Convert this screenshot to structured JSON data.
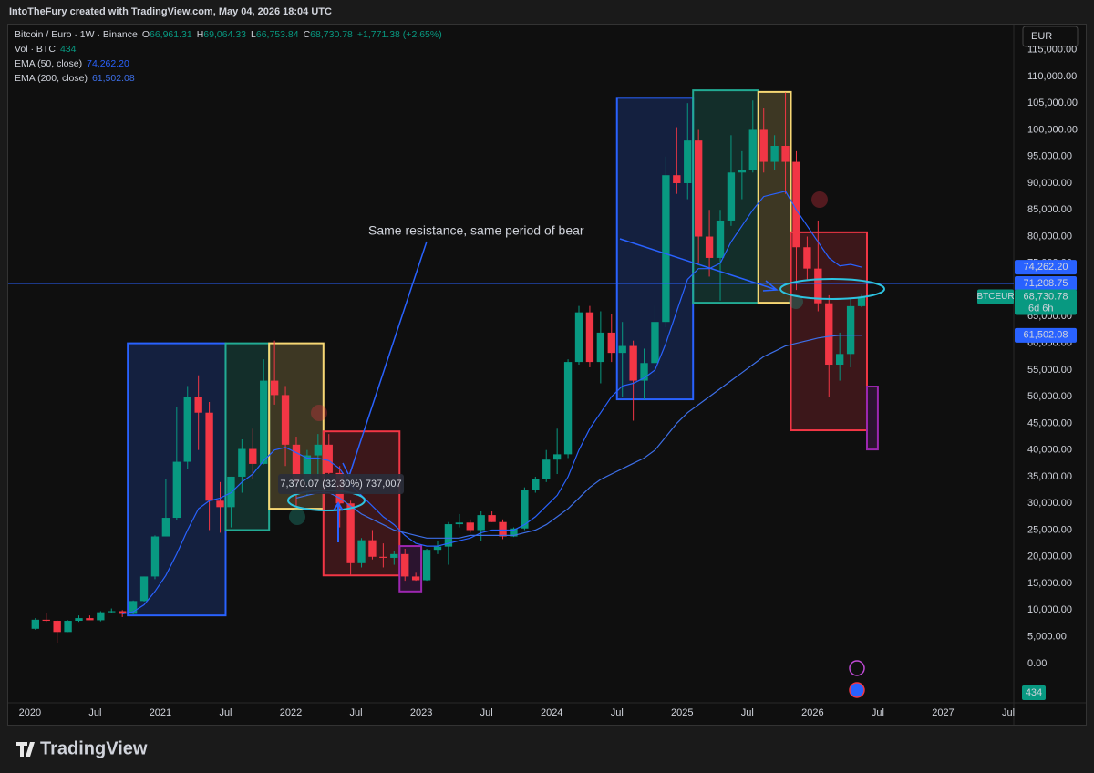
{
  "header": {
    "byline": "IntoTheFury created with TradingView.com, May 04, 2026 18:04 UTC",
    "symbol": "Bitcoin / Euro · 1W · Binance",
    "ohlc": [
      {
        "key": "O",
        "value": "66,961.31"
      },
      {
        "key": "H",
        "value": "69,064.33"
      },
      {
        "key": "L",
        "value": "66,753.84"
      },
      {
        "key": "C",
        "value": "68,730.78"
      }
    ],
    "change": "+1,771.38 (+2.65%)",
    "volume": {
      "name": "Vol · BTC",
      "value": "434"
    },
    "currency": "EUR"
  },
  "chart_data": {
    "type": "candlestick",
    "up_color": "#089981",
    "down_color": "#f23645",
    "x": [
      "2020-01",
      "2020-02",
      "2020-03",
      "2020-04",
      "2020-05",
      "2020-06",
      "2020-07",
      "2020-08",
      "2020-09",
      "2020-10",
      "2020-11",
      "2020-12",
      "2021-01",
      "2021-02",
      "2021-03",
      "2021-04",
      "2021-05",
      "2021-06",
      "2021-07",
      "2021-08",
      "2021-09",
      "2021-10",
      "2021-11",
      "2021-12",
      "2022-01",
      "2022-02",
      "2022-03",
      "2022-04",
      "2022-05",
      "2022-06",
      "2022-07",
      "2022-08",
      "2022-09",
      "2022-10",
      "2022-11",
      "2022-12",
      "2023-01",
      "2023-02",
      "2023-03",
      "2023-04",
      "2023-05",
      "2023-06",
      "2023-07",
      "2023-08",
      "2023-09",
      "2023-10",
      "2023-11",
      "2023-12",
      "2024-01",
      "2024-02",
      "2024-03",
      "2024-04",
      "2024-05",
      "2024-06",
      "2024-07",
      "2024-08",
      "2024-09",
      "2024-10",
      "2024-11",
      "2024-12",
      "2025-01",
      "2025-02",
      "2025-03",
      "2025-04",
      "2025-05",
      "2025-06",
      "2025-07",
      "2025-08",
      "2025-09",
      "2025-10",
      "2025-11",
      "2025-12",
      "2026-01",
      "2026-02",
      "2026-03",
      "2026-04",
      "2026-05"
    ],
    "open": [
      6500,
      8200,
      8000,
      5900,
      8000,
      8500,
      8100,
      9600,
      9800,
      9300,
      11700,
      16300,
      23800,
      27300,
      37800,
      50000,
      47000,
      30500,
      29300,
      35000,
      40200,
      37400,
      53000,
      50300,
      41000,
      34000,
      39000,
      41000,
      35700,
      30000,
      18800,
      23100,
      20000,
      19800,
      20500,
      16300,
      15600,
      21300,
      21900,
      26100,
      26400,
      25000,
      27800,
      26500,
      23800,
      25300,
      32500,
      34500,
      38200,
      39200,
      56500,
      65800,
      56500,
      62000,
      58200,
      59500,
      53000,
      56300,
      64000,
      91500,
      90000,
      98000,
      80000,
      76000,
      83000,
      92000,
      92500,
      100000,
      94000,
      97000,
      94000,
      78000,
      74000,
      67500,
      56000,
      58000,
      66961.31
    ],
    "high": [
      8500,
      9500,
      8100,
      8100,
      9000,
      9000,
      9800,
      10300,
      10000,
      11800,
      16300,
      24000,
      34500,
      48000,
      52000,
      54000,
      49000,
      34000,
      35000,
      42000,
      44000,
      57000,
      60500,
      52000,
      42500,
      40000,
      43000,
      43000,
      37000,
      30500,
      23500,
      25000,
      22500,
      21000,
      21500,
      17000,
      21500,
      23000,
      26500,
      28000,
      27000,
      28500,
      28500,
      27000,
      25500,
      33000,
      35000,
      40000,
      44000,
      57000,
      67000,
      67000,
      66000,
      65500,
      64000,
      60500,
      59000,
      67000,
      95000,
      100500,
      105000,
      100000,
      85000,
      85000,
      99000,
      96000,
      105500,
      104000,
      99000,
      107000,
      96000,
      80000,
      83000,
      69000,
      62000,
      68500,
      69064.33
    ],
    "low": [
      6300,
      7800,
      3900,
      5900,
      7800,
      8200,
      7900,
      9400,
      8700,
      9200,
      11600,
      15800,
      23800,
      26800,
      36500,
      40000,
      25000,
      24500,
      25500,
      32000,
      34500,
      37300,
      48500,
      37000,
      29500,
      31500,
      34500,
      35500,
      25500,
      16500,
      18000,
      19500,
      18000,
      18500,
      15500,
      15500,
      15500,
      20500,
      18500,
      25500,
      24500,
      23000,
      26500,
      23300,
      23700,
      25000,
      32000,
      34000,
      35500,
      38500,
      56000,
      55500,
      52500,
      56500,
      50000,
      45500,
      49500,
      53500,
      63000,
      88000,
      87000,
      75000,
      72500,
      68000,
      82000,
      87000,
      92000,
      92000,
      92500,
      88000,
      70000,
      72000,
      66000,
      50000,
      53000,
      55500,
      66753.84
    ],
    "close": [
      8200,
      8000,
      5900,
      8000,
      8500,
      8100,
      9600,
      9800,
      9300,
      11700,
      16300,
      23800,
      27300,
      37800,
      50000,
      47000,
      30500,
      29300,
      35000,
      40200,
      37400,
      53000,
      50300,
      41000,
      34000,
      39000,
      41000,
      35700,
      30000,
      18800,
      23100,
      20000,
      19800,
      20500,
      16300,
      15600,
      21300,
      21900,
      26100,
      26400,
      25000,
      27800,
      26500,
      23800,
      25300,
      32500,
      34500,
      38200,
      39200,
      56500,
      65800,
      56500,
      62000,
      58200,
      59500,
      53000,
      56300,
      64000,
      91500,
      90000,
      98000,
      80000,
      76000,
      83000,
      92000,
      92500,
      100000,
      94000,
      97000,
      94000,
      78000,
      74000,
      67500,
      56000,
      58000,
      66961.31,
      68730.78
    ],
    "lines": [
      {
        "name": "EMA (50, close)",
        "legend_value": "74,262.20",
        "color": "#2962ff",
        "values": [
          null,
          null,
          null,
          null,
          null,
          null,
          null,
          null,
          9300,
          9700,
          11000,
          13500,
          16500,
          20500,
          25000,
          29000,
          30500,
          31000,
          32000,
          34000,
          35500,
          38000,
          40000,
          40500,
          39500,
          38500,
          38500,
          38000,
          36500,
          33500,
          31500,
          29500,
          27500,
          26000,
          24000,
          22500,
          22000,
          22000,
          22500,
          23000,
          23500,
          24500,
          25000,
          25000,
          25000,
          26000,
          27500,
          29500,
          31500,
          35000,
          40000,
          44000,
          47000,
          50000,
          52000,
          52500,
          53500,
          55000,
          60000,
          66000,
          72000,
          74000,
          74000,
          75000,
          79000,
          82000,
          85000,
          87500,
          88000,
          88500,
          85000,
          82000,
          79000,
          76000,
          74500,
          74800,
          74262.2
        ]
      },
      {
        "name": "EMA (200, close)",
        "legend_value": "61,502.08",
        "color": "#3d6fe8",
        "values": [
          null,
          null,
          null,
          null,
          null,
          null,
          null,
          null,
          null,
          null,
          null,
          null,
          null,
          null,
          null,
          null,
          null,
          null,
          null,
          null,
          null,
          null,
          null,
          null,
          31000,
          31500,
          32000,
          32000,
          31000,
          29500,
          28000,
          27000,
          26000,
          25000,
          24500,
          24000,
          23500,
          23500,
          23500,
          23500,
          24000,
          24000,
          24000,
          24000,
          24000,
          24500,
          25000,
          26000,
          27500,
          29000,
          31000,
          33000,
          34500,
          35500,
          36500,
          37500,
          38500,
          40000,
          42500,
          45000,
          47000,
          48500,
          50000,
          51500,
          53000,
          54500,
          56000,
          57500,
          58500,
          59500,
          60000,
          60500,
          61000,
          61300,
          61500,
          61500,
          61502.08
        ]
      }
    ],
    "boxes": [
      {
        "x": [
          "2020-10",
          "2021-07"
        ],
        "y": [
          9000,
          60000
        ],
        "color": "#2962ff"
      },
      {
        "x": [
          "2021-07",
          "2021-11"
        ],
        "y": [
          25000,
          60000
        ],
        "color": "#22ab94"
      },
      {
        "x": [
          "2021-11",
          "2022-04"
        ],
        "y": [
          29000,
          60000
        ],
        "color": "#f7d774"
      },
      {
        "x": [
          "2022-04",
          "2022-11"
        ],
        "y": [
          16500,
          43500
        ],
        "color": "#f23645"
      },
      {
        "x": [
          "2022-11",
          "2023-01"
        ],
        "y": [
          13500,
          22000
        ],
        "color": "#9c27b0"
      },
      {
        "x": [
          "2024-07",
          "2025-02"
        ],
        "y": [
          49500,
          106000
        ],
        "color": "#2962ff"
      },
      {
        "x": [
          "2025-02",
          "2025-08"
        ],
        "y": [
          67600,
          107400
        ],
        "color": "#22ab94"
      },
      {
        "x": [
          "2025-08",
          "2025-11"
        ],
        "y": [
          67600,
          107100
        ],
        "color": "#f7d774"
      },
      {
        "x": [
          "2025-11",
          "2026-06"
        ],
        "y": [
          43700,
          80800
        ],
        "color": "#f23645"
      },
      {
        "x": [
          "2026-06",
          "2026-07"
        ],
        "y": [
          40100,
          51900
        ],
        "color": "#9c27b0"
      }
    ],
    "hline": {
      "value": 71208.75,
      "color": "#2962ff"
    },
    "price_labels": [
      {
        "value": 74262.2,
        "label": "74,262.20",
        "color": "#2962ff"
      },
      {
        "value": 71208.75,
        "label": "71,208.75",
        "color": "#2962ff"
      },
      {
        "value": 61502.08,
        "label": "61,502.08",
        "color": "#2962ff"
      }
    ],
    "last_price": {
      "value": 68730.78,
      "label": "68,730.78",
      "countdown": "6d 6h",
      "symbol": "BTCEUR",
      "color": "#089981"
    },
    "annotation": "Same resistance, same period of bear",
    "measure_label": "7,370.07 (32.30%) 737,007",
    "xlim": [
      "2019-11",
      "2027-07"
    ],
    "xticks": [
      {
        "value": "2020-01",
        "label": "2020"
      },
      {
        "value": "2020-07",
        "label": "Jul"
      },
      {
        "value": "2021-01",
        "label": "2021"
      },
      {
        "value": "2021-07",
        "label": "Jul"
      },
      {
        "value": "2022-01",
        "label": "2022"
      },
      {
        "value": "2022-07",
        "label": "Jul"
      },
      {
        "value": "2023-01",
        "label": "2023"
      },
      {
        "value": "2023-07",
        "label": "Jul"
      },
      {
        "value": "2024-01",
        "label": "2024"
      },
      {
        "value": "2024-07",
        "label": "Jul"
      },
      {
        "value": "2025-01",
        "label": "2025"
      },
      {
        "value": "2025-07",
        "label": "Jul"
      },
      {
        "value": "2026-01",
        "label": "2026"
      },
      {
        "value": "2026-07",
        "label": "Jul"
      },
      {
        "value": "2027-01",
        "label": "2027"
      },
      {
        "value": "2027-07",
        "label": "Jul"
      }
    ],
    "ylim": [
      -7200,
      117500
    ],
    "yticks": [
      {
        "value": 0,
        "label": "0.00"
      },
      {
        "value": 5000,
        "label": "5,000.00"
      },
      {
        "value": 10000,
        "label": "10,000.00"
      },
      {
        "value": 15000,
        "label": "15,000.00"
      },
      {
        "value": 20000,
        "label": "20,000.00"
      },
      {
        "value": 25000,
        "label": "25,000.00"
      },
      {
        "value": 30000,
        "label": "30,000.00"
      },
      {
        "value": 35000,
        "label": "35,000.00"
      },
      {
        "value": 40000,
        "label": "40,000.00"
      },
      {
        "value": 45000,
        "label": "45,000.00"
      },
      {
        "value": 50000,
        "label": "50,000.00"
      },
      {
        "value": 55000,
        "label": "55,000.00"
      },
      {
        "value": 60000,
        "label": "60,000.00"
      },
      {
        "value": 65000,
        "label": "65,000.00"
      },
      {
        "value": 70000,
        "label": "70,000.00"
      },
      {
        "value": 75000,
        "label": "75,000.00"
      },
      {
        "value": 80000,
        "label": "80,000.00"
      },
      {
        "value": 85000,
        "label": "85,000.00"
      },
      {
        "value": 90000,
        "label": "90,000.00"
      },
      {
        "value": 95000,
        "label": "95,000.00"
      },
      {
        "value": 100000,
        "label": "100,000.00"
      },
      {
        "value": 105000,
        "label": "105,000.00"
      },
      {
        "value": 110000,
        "label": "110,000.00"
      },
      {
        "value": 115000,
        "label": "115,000.00"
      }
    ],
    "grid": false
  },
  "footer": {
    "brand": "TradingView"
  }
}
